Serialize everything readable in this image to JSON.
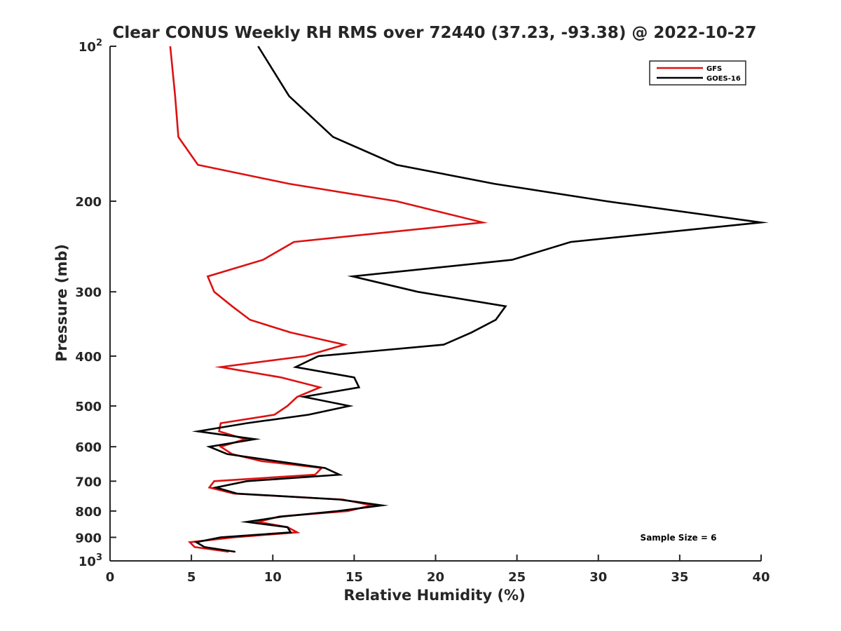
{
  "chart_data": {
    "type": "line",
    "title": "Clear CONUS Weekly RH RMS over 72440 (37.23, -93.38) @ 2022-10-27",
    "xlabel": "Relative Humidity (%)",
    "ylabel": "Pressure (mb)",
    "xlim": [
      0,
      40
    ],
    "ylim": [
      100,
      1000
    ],
    "y_scale": "log",
    "y_reversed": true,
    "x_ticks": [
      "0",
      "5",
      "10",
      "15",
      "20",
      "25",
      "30",
      "35",
      "40"
    ],
    "y_ticks": [
      {
        "value": 100,
        "base": "10",
        "exp": "2"
      },
      {
        "value": 200,
        "label": "200"
      },
      {
        "value": 300,
        "label": "300"
      },
      {
        "value": 400,
        "label": "400"
      },
      {
        "value": 500,
        "label": "500"
      },
      {
        "value": 600,
        "label": "600"
      },
      {
        "value": 700,
        "label": "700"
      },
      {
        "value": 800,
        "label": "800"
      },
      {
        "value": 900,
        "label": "900"
      },
      {
        "value": 1000,
        "base": "10",
        "exp": "3"
      }
    ],
    "legend_position": "top-right",
    "annotation": "Sample Size = 6",
    "series": [
      {
        "name": "GFS",
        "color": "#dd1111",
        "points": [
          [
            3.7,
            100
          ],
          [
            4.0,
            125
          ],
          [
            4.2,
            150
          ],
          [
            5.4,
            170
          ],
          [
            11.0,
            185
          ],
          [
            17.6,
            200
          ],
          [
            22.9,
            220
          ],
          [
            11.3,
            240
          ],
          [
            9.4,
            260
          ],
          [
            6.0,
            280
          ],
          [
            6.4,
            300
          ],
          [
            7.5,
            320
          ],
          [
            8.6,
            340
          ],
          [
            11.1,
            360
          ],
          [
            14.4,
            380
          ],
          [
            12.0,
            400
          ],
          [
            6.8,
            420
          ],
          [
            10.5,
            440
          ],
          [
            12.9,
            460
          ],
          [
            11.5,
            480
          ],
          [
            10.9,
            500
          ],
          [
            10.1,
            520
          ],
          [
            6.8,
            540
          ],
          [
            6.7,
            560
          ],
          [
            8.3,
            580
          ],
          [
            6.8,
            600
          ],
          [
            7.5,
            620
          ],
          [
            9.3,
            640
          ],
          [
            13.0,
            660
          ],
          [
            12.6,
            680
          ],
          [
            6.4,
            700
          ],
          [
            6.1,
            720
          ],
          [
            7.6,
            740
          ],
          [
            14.3,
            760
          ],
          [
            16.1,
            780
          ],
          [
            14.6,
            800
          ],
          [
            10.4,
            820
          ],
          [
            9.1,
            840
          ],
          [
            10.9,
            860
          ],
          [
            11.5,
            880
          ],
          [
            7.6,
            900
          ],
          [
            4.9,
            920
          ],
          [
            5.2,
            940
          ],
          [
            7.3,
            960
          ]
        ]
      },
      {
        "name": "GOES-16",
        "color": "#000000",
        "points": [
          [
            9.1,
            100
          ],
          [
            11.0,
            125
          ],
          [
            13.7,
            150
          ],
          [
            17.6,
            170
          ],
          [
            23.6,
            185
          ],
          [
            30.5,
            200
          ],
          [
            40.0,
            220
          ],
          [
            28.3,
            240
          ],
          [
            24.7,
            260
          ],
          [
            14.9,
            280
          ],
          [
            18.9,
            300
          ],
          [
            24.3,
            320
          ],
          [
            23.7,
            340
          ],
          [
            22.2,
            360
          ],
          [
            20.5,
            380
          ],
          [
            12.8,
            400
          ],
          [
            11.4,
            420
          ],
          [
            15.0,
            440
          ],
          [
            15.3,
            460
          ],
          [
            11.9,
            480
          ],
          [
            14.7,
            500
          ],
          [
            12.2,
            520
          ],
          [
            8.4,
            540
          ],
          [
            5.4,
            560
          ],
          [
            8.9,
            580
          ],
          [
            6.1,
            600
          ],
          [
            7.2,
            620
          ],
          [
            10.2,
            640
          ],
          [
            13.2,
            660
          ],
          [
            14.1,
            680
          ],
          [
            8.4,
            700
          ],
          [
            6.5,
            720
          ],
          [
            7.8,
            740
          ],
          [
            14.1,
            760
          ],
          [
            16.7,
            780
          ],
          [
            14.0,
            800
          ],
          [
            10.6,
            820
          ],
          [
            8.4,
            840
          ],
          [
            10.9,
            860
          ],
          [
            11.1,
            880
          ],
          [
            6.8,
            900
          ],
          [
            5.3,
            920
          ],
          [
            5.8,
            940
          ],
          [
            7.7,
            960
          ]
        ]
      }
    ]
  }
}
